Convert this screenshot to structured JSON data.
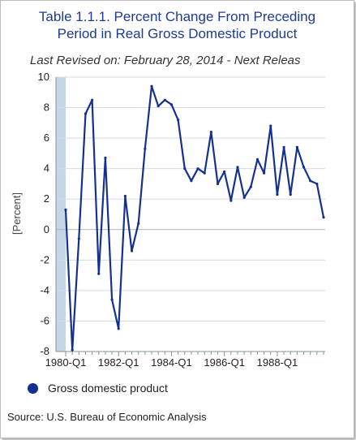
{
  "title_line1": "Table 1.1.1. Percent Change From Preceding",
  "title_line2": "Period in Real Gross Domestic Product",
  "subtitle": "Last Revised on: February 28, 2014 - Next Releas",
  "source": "Source: U.S. Bureau of Economic Analysis",
  "colors": {
    "series": "#14318f",
    "title": "#1f3a93",
    "recession_band": "#c7d6e6",
    "grid": "#d4dbe4"
  },
  "chart_data": {
    "type": "line",
    "title": "Table 1.1.1. Percent Change From Preceding Period in Real Gross Domestic Product",
    "ylabel": "[Percent]",
    "xlabel": "",
    "ylim": [
      -8,
      10
    ],
    "yticks": [
      -8,
      -6,
      -4,
      -2,
      0,
      2,
      4,
      6,
      8,
      10
    ],
    "xtick_labels": [
      "1980-Q1",
      "1982-Q1",
      "1984-Q1",
      "1986-Q1",
      "1988-Q1"
    ],
    "legend": "bottom-left",
    "grid": true,
    "shaded_period": [
      "1980-Q1",
      "1980-Q1"
    ],
    "series": [
      {
        "name": "Gross domestic product",
        "x": [
          "1980-Q1",
          "1980-Q2",
          "1980-Q3",
          "1980-Q4",
          "1981-Q1",
          "1981-Q2",
          "1981-Q3",
          "1981-Q4",
          "1982-Q1",
          "1982-Q2",
          "1982-Q3",
          "1982-Q4",
          "1983-Q1",
          "1983-Q2",
          "1983-Q3",
          "1983-Q4",
          "1984-Q1",
          "1984-Q2",
          "1984-Q3",
          "1984-Q4",
          "1985-Q1",
          "1985-Q2",
          "1985-Q3",
          "1985-Q4",
          "1986-Q1",
          "1986-Q2",
          "1986-Q3",
          "1986-Q4",
          "1987-Q1",
          "1987-Q2",
          "1987-Q3",
          "1987-Q4",
          "1988-Q1",
          "1988-Q2",
          "1988-Q3",
          "1988-Q4",
          "1989-Q1",
          "1989-Q2",
          "1989-Q3",
          "1989-Q4"
        ],
        "values": [
          1.3,
          -7.9,
          -0.6,
          7.6,
          8.5,
          -2.9,
          4.7,
          -4.6,
          -6.5,
          2.2,
          -1.4,
          0.4,
          5.3,
          9.4,
          8.1,
          8.5,
          8.2,
          7.2,
          4.0,
          3.2,
          4.0,
          3.7,
          6.4,
          3.0,
          3.8,
          1.9,
          4.1,
          2.1,
          2.8,
          4.6,
          3.7,
          6.8,
          2.3,
          5.4,
          2.3,
          5.4,
          4.1,
          3.2,
          3.0,
          0.8
        ]
      }
    ]
  }
}
